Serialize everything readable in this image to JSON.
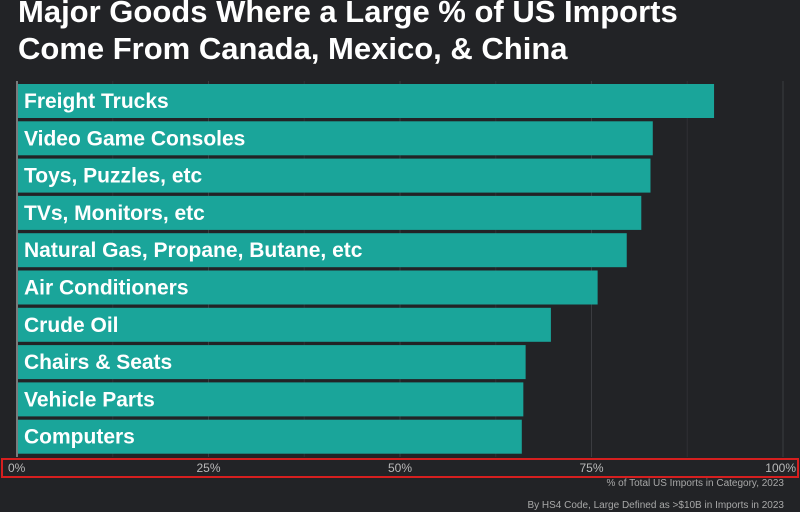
{
  "chart_data": {
    "type": "bar",
    "orientation": "horizontal",
    "title": "Major Goods Where a Large % of US Imports\nCome From Canada, Mexico, & China",
    "categories": [
      "Freight Trucks",
      "Video Game Consoles",
      "Toys, Puzzles, etc",
      "TVs, Monitors, etc",
      "Natural Gas, Propane, Butane, etc",
      "Air Conditioners",
      "Crude Oil",
      "Chairs & Seats",
      "Vehicle Parts",
      "Computers"
    ],
    "values": [
      91,
      83,
      82.7,
      81.5,
      79.6,
      75.8,
      69.7,
      66.4,
      66.1,
      65.9
    ],
    "xlim": [
      0,
      100
    ],
    "x_ticks": [
      "0%",
      "25%",
      "50%",
      "75%",
      "100%"
    ],
    "xlabel": "% of Total US Imports in Category, 2023",
    "footnote": "By HS4 Code, Large Defined as >$10B in Imports in 2023",
    "grid": true,
    "bar_color": "#1aa59a",
    "background_color": "#222326",
    "highlight_box_color": "#d61f1f"
  }
}
